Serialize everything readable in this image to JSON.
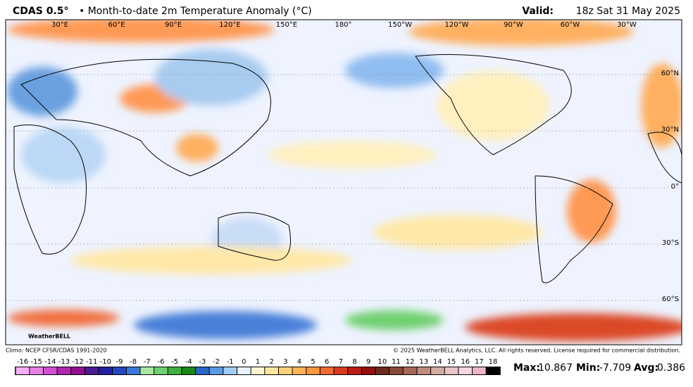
{
  "header": {
    "product": "CDAS 0.5°",
    "title": "• Month-to-date 2m Temperature Anomaly (°C)",
    "valid_label": "Valid:",
    "valid": "18z Sat 31 May 2025"
  },
  "map": {
    "longitudes": [
      "30°E",
      "60°E",
      "90°E",
      "120°E",
      "150°E",
      "180°",
      "150°W",
      "120°W",
      "90°W",
      "60°W",
      "30°W"
    ],
    "latitudes": [
      "60°N",
      "30°N",
      "0°",
      "30°S",
      "60°S"
    ],
    "logo": "WeatherBELL"
  },
  "footer": {
    "climo": "Climo: NCEP CFSR/CDAS 1991-2020",
    "copyright": "© 2025 WeatherBELL Analytics, LLC. All rights reserved. License required for commercial distribution."
  },
  "colorbar": {
    "ticks": [
      -16,
      -15,
      -14,
      -13,
      -12,
      -11,
      -10,
      -9,
      -8,
      -7,
      -6,
      -5,
      -4,
      -3,
      -2,
      -1,
      0,
      1,
      2,
      3,
      4,
      5,
      6,
      7,
      8,
      9,
      10,
      11,
      12,
      13,
      14,
      15,
      16,
      17,
      18
    ],
    "colors": [
      "#f4b0f4",
      "#e880e8",
      "#d050d0",
      "#b028b0",
      "#901090",
      "#4a1a90",
      "#2020a0",
      "#2448c0",
      "#3a78d8",
      "#a8e8a0",
      "#70d070",
      "#40b040",
      "#188818",
      "#2a64c4",
      "#5a9ae4",
      "#a0ccf4",
      "#e8f2ff",
      "#fff6d0",
      "#ffe6a0",
      "#ffd07a",
      "#ffb458",
      "#ff9640",
      "#f46a30",
      "#dc3a20",
      "#bc1e14",
      "#941010",
      "#6e2a1c",
      "#8a4a3a",
      "#a86858",
      "#c08a7c",
      "#d6aca2",
      "#eac4c4",
      "#f8d4e0",
      "#eeb4c8"
    ]
  },
  "stats": {
    "max_label": "Max:",
    "max": 10.867,
    "min_label": "Min:",
    "min": -7.709,
    "avg_label": "Avg:",
    "avg": 0.386
  }
}
